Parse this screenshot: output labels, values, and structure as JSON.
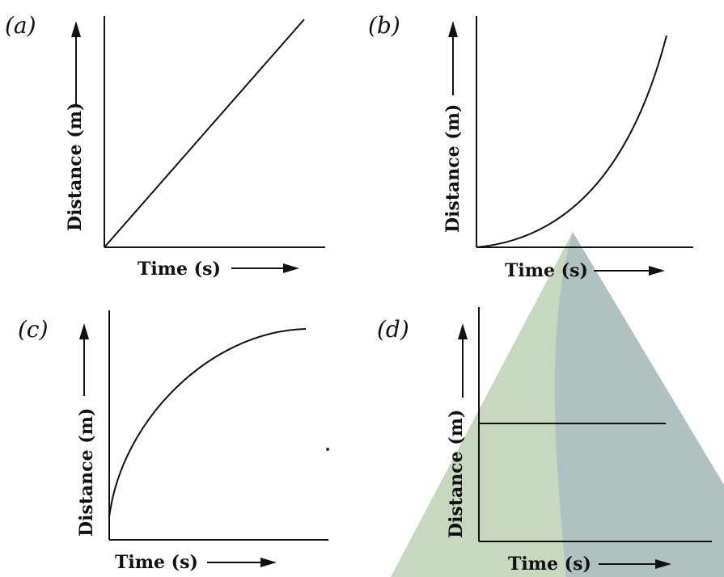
{
  "panels": [
    {
      "label": "(a)",
      "xlabel": "Time (s)",
      "ylabel": "Distance (m)",
      "curve": "linear"
    },
    {
      "label": "(b)",
      "xlabel": "Time (s)",
      "ylabel": "Distance (m)",
      "curve": "accelerating"
    },
    {
      "label": "(c)",
      "xlabel": "Time (s)",
      "ylabel": "Distance (m)",
      "curve": "decelerating"
    },
    {
      "label": "(d)",
      "xlabel": "Time (s)",
      "ylabel": "Distance (m)",
      "curve": "constant"
    }
  ],
  "overlay": {
    "shape": "triangle",
    "colors": [
      "#8fb48c",
      "#7e9db0"
    ]
  }
}
